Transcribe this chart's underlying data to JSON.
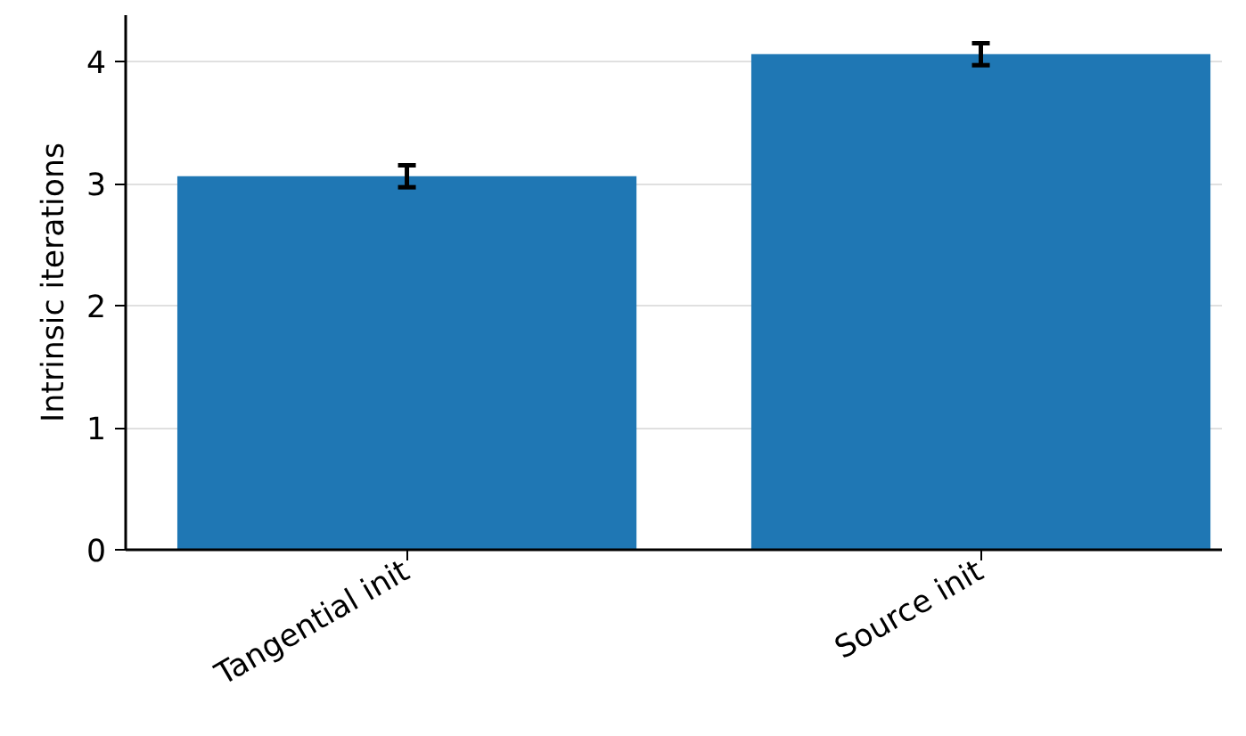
{
  "chart_data": {
    "type": "bar",
    "ylabel": "Intrinsic iterations",
    "categories": [
      "Tangential init",
      "Source init"
    ],
    "series": [
      {
        "color": "#1f77b4",
        "values": [
          3.06,
          4.06
        ],
        "errors": [
          0.09,
          0.09
        ]
      }
    ],
    "ylim": [
      0,
      4.38
    ],
    "yticks": [
      0,
      1,
      2,
      3,
      4
    ],
    "grid": "y"
  }
}
